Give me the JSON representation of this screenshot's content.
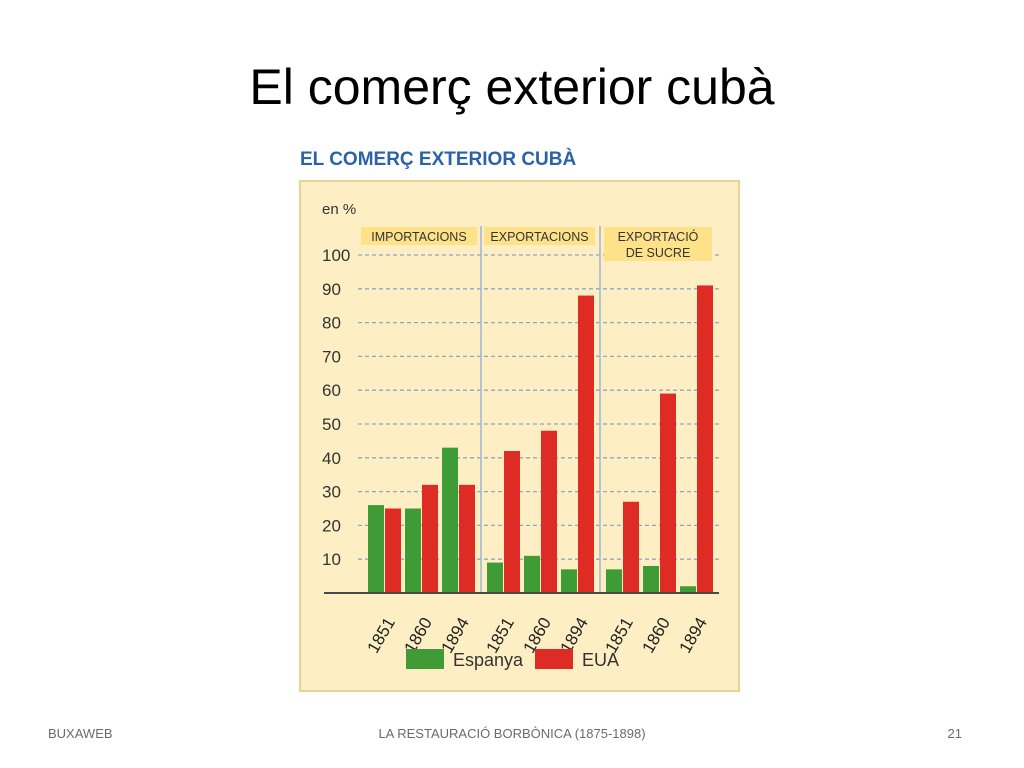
{
  "slide": {
    "title": "El comerç exterior cubà"
  },
  "footer": {
    "left": "BUXAWEB",
    "center": "LA RESTAURACIÓ BORBÒNICA (1875-1898)",
    "right": "21"
  },
  "colors": {
    "panel_bg": "#fdefc3",
    "header_bg": "#fde28a",
    "title_blue": "#2b62a8",
    "espanya": "#3f9b35",
    "eua": "#de2b24",
    "grid": "#8ea7c7",
    "divider": "#9db5d3"
  },
  "chart_data": {
    "type": "bar",
    "title": "EL COMERÇ EXTERIOR CUBÀ",
    "ylabel": "en %",
    "ylim": [
      0,
      100
    ],
    "yticks": [
      10,
      20,
      30,
      40,
      50,
      60,
      70,
      80,
      90,
      100
    ],
    "grid": true,
    "legend_position": "bottom",
    "groups": [
      {
        "label": "IMPORTACIONS",
        "categories": [
          "1851",
          "1860",
          "1894"
        ]
      },
      {
        "label": "EXPORTACIONS",
        "categories": [
          "1851",
          "1860",
          "1894"
        ]
      },
      {
        "label": "EXPORTACIÓ DE SUCRE",
        "categories": [
          "1851",
          "1860",
          "1894"
        ]
      }
    ],
    "series": [
      {
        "name": "Espanya",
        "values": [
          26,
          25,
          43,
          9,
          11,
          7,
          7,
          8,
          2
        ]
      },
      {
        "name": "EUA",
        "values": [
          25,
          32,
          32,
          42,
          48,
          88,
          27,
          59,
          91
        ]
      }
    ]
  }
}
